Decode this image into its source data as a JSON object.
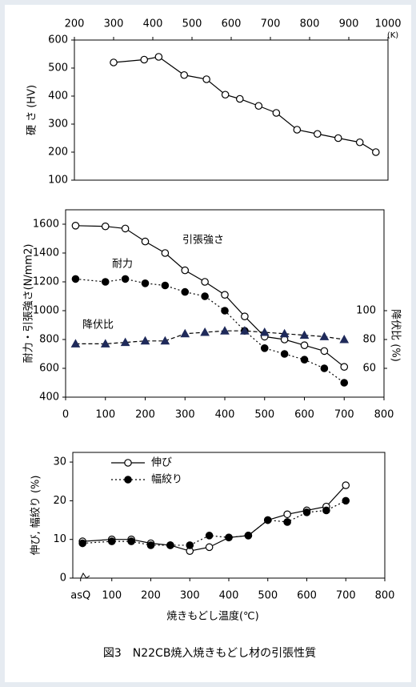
{
  "chart_data": [
    {
      "type": "line",
      "xlabel": "(K)",
      "ylabel": "硬 さ (HV)",
      "xaxis": "top",
      "x": [
        300,
        378,
        415,
        480,
        537,
        585,
        622,
        670,
        715,
        768,
        820,
        873,
        928,
        969
      ],
      "series": [
        {
          "name": "硬さ",
          "color": "#000000",
          "marker": "circle-open",
          "dash": "solid",
          "values": [
            520,
            530,
            540,
            475,
            460,
            405,
            390,
            365,
            340,
            280,
            265,
            250,
            235,
            200
          ]
        }
      ],
      "xlim": [
        200,
        1000
      ],
      "xticks": [
        200,
        300,
        400,
        500,
        600,
        700,
        800,
        900,
        1000
      ],
      "ylim": [
        100,
        600
      ],
      "yticks": [
        100,
        200,
        300,
        400,
        500,
        600
      ]
    },
    {
      "type": "line",
      "ylabel": "耐力・引張強さ(N/mm2)",
      "y2label": "降伏比 (%)",
      "xaxis": "bottom",
      "x": [
        25,
        100,
        150,
        200,
        250,
        300,
        350,
        400,
        450,
        500,
        550,
        600,
        650,
        700
      ],
      "series": [
        {
          "name": "引張強さ",
          "color": "#000000",
          "marker": "circle-open",
          "dash": "solid",
          "values": [
            1590,
            1585,
            1570,
            1480,
            1400,
            1280,
            1200,
            1110,
            960,
            820,
            800,
            760,
            720,
            610
          ]
        },
        {
          "name": "耐力",
          "color": "#000000",
          "marker": "circle-filled",
          "dash": "dotted",
          "values": [
            1220,
            1200,
            1220,
            1190,
            1175,
            1130,
            1100,
            1000,
            860,
            740,
            700,
            660,
            600,
            500
          ]
        },
        {
          "name": "降伏比",
          "color": "#000000",
          "marker": "triangle",
          "dash": "dashed",
          "axis": "y2",
          "values": [
            77,
            77,
            78,
            79,
            79,
            84,
            85,
            86,
            86,
            85,
            84,
            83,
            82,
            80
          ]
        }
      ],
      "xlim": [
        0,
        800
      ],
      "xticks": [
        0,
        100,
        200,
        300,
        400,
        500,
        600,
        700,
        800
      ],
      "ylim": [
        400,
        1700
      ],
      "yticks": [
        400,
        600,
        800,
        1000,
        1200,
        1400,
        1600
      ],
      "y2lim": [
        40,
        170
      ],
      "y2ticks": [
        60,
        80,
        100
      ]
    },
    {
      "type": "line",
      "xlabel": "焼きもどし温度(℃)",
      "ylabel": "伸び, 幅絞り (%)",
      "xaxis": "bottom",
      "legend": "top-left",
      "x": [
        25,
        100,
        150,
        200,
        250,
        300,
        350,
        400,
        450,
        500,
        550,
        600,
        650,
        700
      ],
      "series": [
        {
          "name": "伸び",
          "color": "#000000",
          "marker": "circle-open",
          "dash": "solid",
          "values": [
            9.5,
            10,
            10,
            9,
            8.5,
            7,
            8,
            10.5,
            11,
            15,
            16.5,
            17.5,
            18.5,
            24
          ]
        },
        {
          "name": "幅絞り",
          "color": "#000000",
          "marker": "circle-filled",
          "dash": "dotted",
          "values": [
            9,
            9.5,
            9.5,
            8.5,
            8.5,
            8.5,
            11,
            10.5,
            11,
            15,
            14.5,
            17,
            17.5,
            20
          ]
        }
      ],
      "xlim": [
        0,
        800
      ],
      "xticks": [
        {
          "value": 20,
          "label": "asQ"
        },
        100,
        200,
        300,
        400,
        500,
        600,
        700,
        800
      ],
      "ylim": [
        0,
        32.5
      ],
      "yticks": [
        0,
        10,
        20,
        30
      ]
    }
  ],
  "caption": "図3　N22CB焼入焼きもどし材の引張性質"
}
